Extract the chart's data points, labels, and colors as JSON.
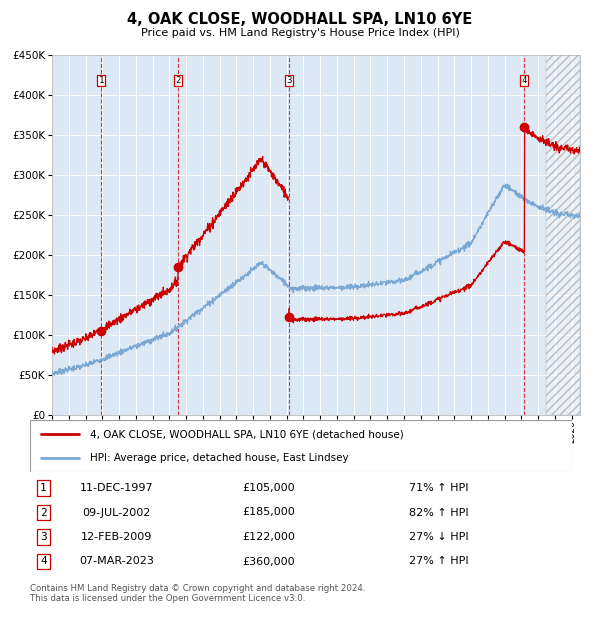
{
  "title": "4, OAK CLOSE, WOODHALL SPA, LN10 6YE",
  "subtitle": "Price paid vs. HM Land Registry's House Price Index (HPI)",
  "legend_property": "4, OAK CLOSE, WOODHALL SPA, LN10 6YE (detached house)",
  "legend_hpi": "HPI: Average price, detached house, East Lindsey",
  "footer": "Contains HM Land Registry data © Crown copyright and database right 2024.\nThis data is licensed under the Open Government Licence v3.0.",
  "transactions": [
    {
      "num": 1,
      "date": "11-DEC-1997",
      "price": "£105,000",
      "hpi": "71% ↑ HPI"
    },
    {
      "num": 2,
      "date": "09-JUL-2002",
      "price": "£185,000",
      "hpi": "82% ↑ HPI"
    },
    {
      "num": 3,
      "date": "12-FEB-2009",
      "price": "£122,000",
      "hpi": "27% ↓ HPI"
    },
    {
      "num": 4,
      "date": "07-MAR-2023",
      "price": "£360,000",
      "hpi": "27% ↑ HPI"
    }
  ],
  "transaction_dates_dec": [
    1997.94,
    2002.52,
    2009.12,
    2023.18
  ],
  "transaction_prices": [
    105000,
    185000,
    122000,
    360000
  ],
  "plot_color_property": "#cc0000",
  "plot_color_hpi": "#7aa8d2",
  "background_color": "#dce9f5",
  "ylim": [
    0,
    450000
  ],
  "xlim_start": 1995.0,
  "xlim_end": 2026.5
}
